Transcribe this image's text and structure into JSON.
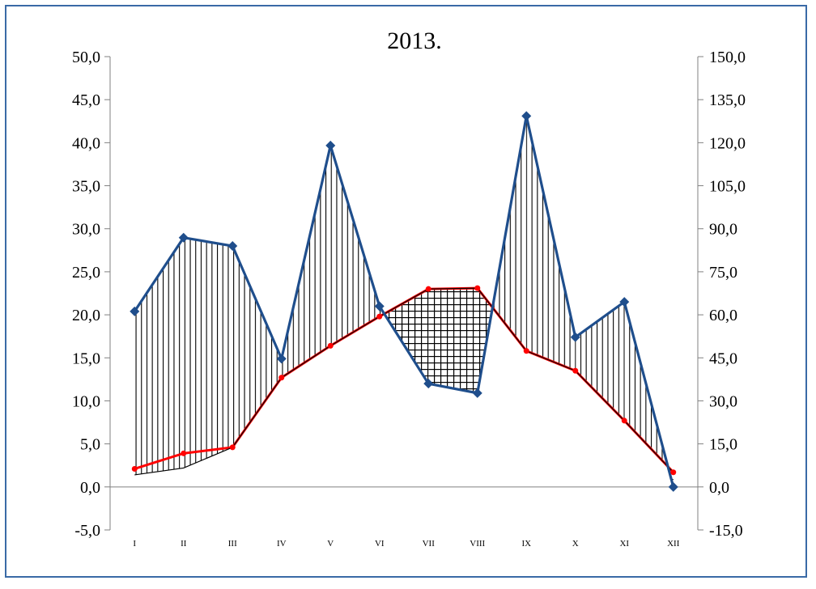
{
  "chart_data": {
    "type": "line",
    "title": "2013.",
    "categories": [
      "I",
      "II",
      "III",
      "IV",
      "V",
      "VI",
      "VII",
      "VIII",
      "IX",
      "X",
      "XI",
      "XII"
    ],
    "y_left": {
      "range": [
        -5.0,
        50.0
      ],
      "ticks": [
        "50,0",
        "45,0",
        "40,0",
        "35,0",
        "30,0",
        "25,0",
        "20,0",
        "15,0",
        "10,0",
        "5,0",
        "0,0",
        "-5,0"
      ],
      "tick_values": [
        50,
        45,
        40,
        35,
        30,
        25,
        20,
        15,
        10,
        5,
        0,
        -5
      ]
    },
    "y_right": {
      "range": [
        -15.0,
        150.0
      ],
      "ticks": [
        "150,0",
        "135,0",
        "120,0",
        "105,0",
        "90,0",
        "75,0",
        "60,0",
        "45,0",
        "30,0",
        "15,0",
        "0,0",
        "-15,0"
      ],
      "tick_values": [
        150,
        135,
        120,
        105,
        90,
        75,
        60,
        45,
        30,
        15,
        0,
        -15
      ]
    },
    "series": [
      {
        "axis": "left",
        "color": "#ff0000",
        "marker": "circle",
        "values": [
          2.1,
          3.9,
          4.6,
          12.7,
          16.4,
          19.8,
          23.0,
          23.1,
          15.8,
          13.5,
          7.7,
          1.7
        ]
      },
      {
        "axis": "right",
        "color": "#1f4e8c",
        "marker": "diamond",
        "values": [
          61.2,
          86.9,
          84.0,
          44.7,
          119.0,
          63.0,
          36.0,
          32.7,
          129.3,
          52.2,
          64.5,
          0.0
        ]
      },
      {
        "axis": "left",
        "color": "#000000",
        "marker": "none",
        "values": [
          1.4,
          2.2,
          4.6,
          12.7,
          16.4,
          19.8,
          23.0,
          23.1,
          15.8,
          13.5,
          7.7,
          1.7
        ]
      }
    ],
    "fill_patterns": {
      "surplus": "vertical-hatch",
      "deficit": "crosshatch"
    },
    "colors": {
      "frame": "#3a6aa6",
      "axis": "#808080"
    }
  }
}
